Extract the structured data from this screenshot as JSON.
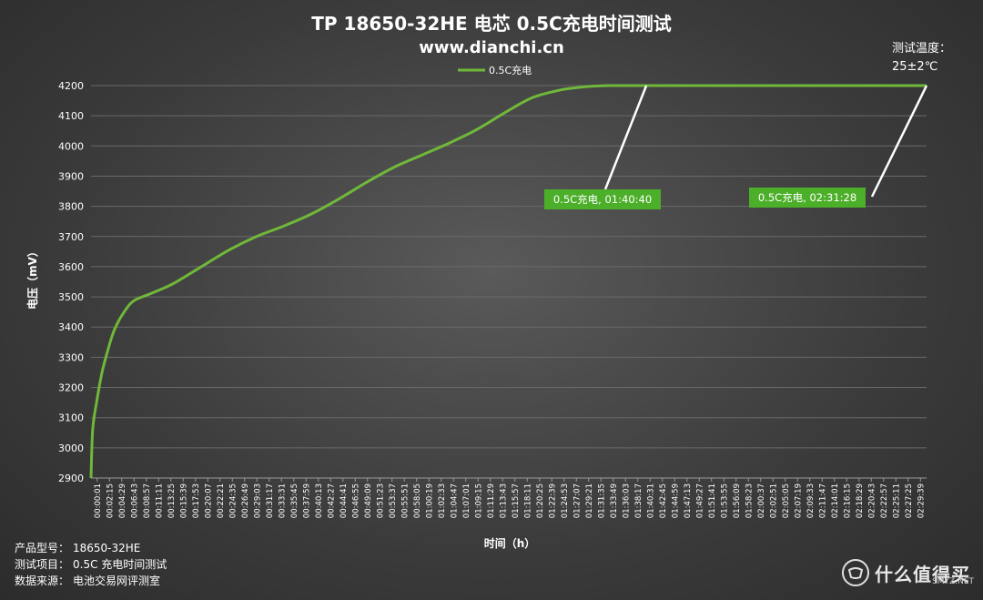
{
  "chart_data": {
    "type": "line",
    "title": "TP 18650-32HE 电芯 0.5C充电时间测试",
    "subtitle": "www.dianchi.cn",
    "xlabel": "时间（h）",
    "ylabel": "电压（mV）",
    "ylim": [
      2900,
      4200
    ],
    "yticks": [
      2900,
      3000,
      3100,
      3200,
      3300,
      3400,
      3500,
      3600,
      3700,
      3800,
      3900,
      4000,
      4100,
      4200
    ],
    "xticks": [
      "00:00:01",
      "00:02:15",
      "00:04:29",
      "00:06:43",
      "00:08:57",
      "00:11:11",
      "00:13:25",
      "00:15:39",
      "00:17:53",
      "00:20:07",
      "00:22:21",
      "00:24:35",
      "00:26:49",
      "00:29:03",
      "00:31:17",
      "00:33:31",
      "00:35:45",
      "00:37:59",
      "00:40:13",
      "00:42:27",
      "00:44:41",
      "00:46:55",
      "00:49:09",
      "00:51:23",
      "00:53:37",
      "00:55:51",
      "00:58:05",
      "01:00:19",
      "01:02:33",
      "01:04:47",
      "01:07:01",
      "01:09:15",
      "01:11:29",
      "01:13:43",
      "01:15:57",
      "01:18:11",
      "01:20:25",
      "01:22:39",
      "01:24:53",
      "01:27:07",
      "01:29:21",
      "01:31:35",
      "01:33:49",
      "01:36:03",
      "01:38:17",
      "01:40:31",
      "01:42:45",
      "01:44:59",
      "01:47:13",
      "01:49:27",
      "01:51:41",
      "01:53:55",
      "01:56:09",
      "01:58:23",
      "02:00:37",
      "02:02:51",
      "02:05:05",
      "02:07:19",
      "02:09:33",
      "02:11:47",
      "02:14:01",
      "02:16:15",
      "02:18:29",
      "02:20:43",
      "02:22:57",
      "02:25:11",
      "02:27:25",
      "02:29:39"
    ],
    "grid": true,
    "legend_position": "top",
    "series": [
      {
        "name": "0.5C充电",
        "color": "#70b83a",
        "x_min": [
          0,
          0.3,
          1,
          2,
          3,
          4,
          5,
          6,
          7,
          8,
          9,
          10,
          12,
          15,
          20,
          25,
          30,
          35,
          40,
          45,
          50,
          55,
          60,
          65,
          70,
          75,
          80,
          85,
          88,
          90,
          92,
          94,
          96,
          98,
          100.67,
          151.47
        ],
        "y": [
          2900,
          3060,
          3150,
          3250,
          3320,
          3380,
          3420,
          3450,
          3475,
          3490,
          3498,
          3505,
          3520,
          3545,
          3600,
          3655,
          3700,
          3735,
          3775,
          3825,
          3880,
          3930,
          3970,
          4010,
          4055,
          4110,
          4160,
          4185,
          4193,
          4197,
          4199,
          4200,
          4200,
          4200,
          4200,
          4200
        ]
      }
    ],
    "annotations": [
      {
        "text": "0.5C充电, 01:40:40",
        "x_min": 100.67,
        "y": 4200,
        "box_color": "#4caf29"
      },
      {
        "text": "0.5C充电, 02:31:28",
        "x_min": 151.47,
        "y": 4200,
        "box_color": "#4caf29"
      }
    ]
  },
  "footer": {
    "model_label": "产品型号：",
    "model_value": "18650-32HE",
    "item_label": "测试项目：",
    "item_value": "0.5C 充电时间测试",
    "source_label": "数据来源：",
    "source_value": "电池交易网评测室"
  },
  "temperature": {
    "line1": "测试温度：",
    "line2": "25±2℃"
  },
  "watermark": {
    "text": "什么值得买",
    "sub": "SMYZ.NET"
  }
}
